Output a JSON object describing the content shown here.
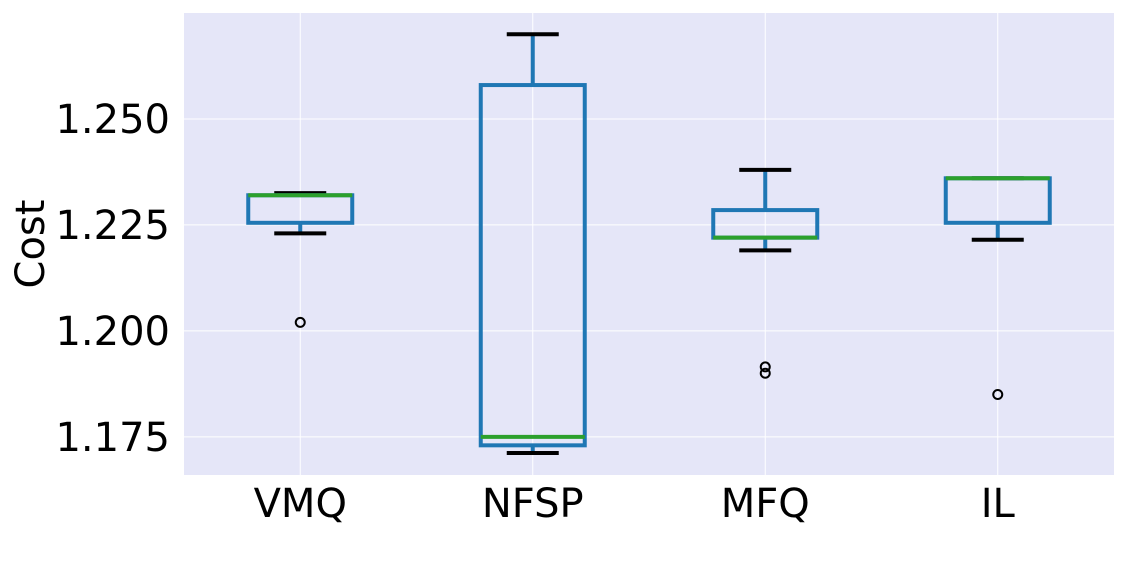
{
  "chart_data": {
    "type": "box",
    "title": "",
    "xlabel": "",
    "ylabel": "Cost",
    "ylim": [
      1.166,
      1.275
    ],
    "yticks": [
      "1.175",
      "1.200",
      "1.225",
      "1.250"
    ],
    "grid": true,
    "categories": [
      "VMQ",
      "NFSP",
      "MFQ",
      "IL"
    ],
    "boxes": [
      {
        "whisker_low": 1.223,
        "q1": 1.2255,
        "median": 1.232,
        "q3": 1.232,
        "whisker_high": 1.2325,
        "outliers": [
          1.202
        ]
      },
      {
        "whisker_low": 1.1712,
        "q1": 1.173,
        "median": 1.175,
        "q3": 1.258,
        "whisker_high": 1.27,
        "outliers": []
      },
      {
        "whisker_low": 1.219,
        "q1": 1.222,
        "median": 1.222,
        "q3": 1.2285,
        "whisker_high": 1.238,
        "outliers": [
          1.1915,
          1.19
        ]
      },
      {
        "whisker_low": 1.2215,
        "q1": 1.2255,
        "median": 1.236,
        "q3": 1.236,
        "whisker_high": 1.236,
        "outliers": [
          1.185
        ]
      }
    ],
    "colors": {
      "background": "#e5e6f8",
      "grid": "#ffffff",
      "box": "#1f77b4",
      "median": "#2ca02c",
      "whisker": "#000000",
      "outlier": "#000000"
    }
  }
}
